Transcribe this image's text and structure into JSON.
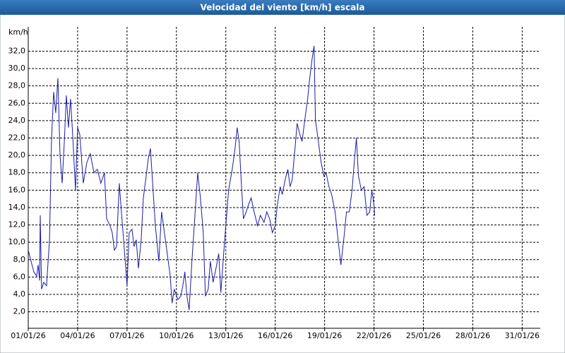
{
  "chart_data": {
    "type": "line",
    "title": "Velocidad del viento [km/h] escala",
    "y_label": "km/h",
    "color": "#1a1aa8",
    "grid": true,
    "x": [
      0.0,
      0.17,
      0.34,
      0.51,
      0.6,
      0.69,
      0.73,
      0.81,
      0.94,
      1.11,
      1.29,
      1.41,
      1.54,
      1.67,
      1.8,
      1.93,
      2.06,
      2.19,
      2.31,
      2.44,
      2.57,
      2.7,
      2.87,
      3.0,
      3.13,
      3.34,
      3.56,
      3.77,
      3.99,
      4.2,
      4.41,
      4.63,
      4.76,
      4.97,
      5.1,
      5.23,
      5.36,
      5.53,
      5.66,
      5.79,
      6.0,
      6.13,
      6.3,
      6.43,
      6.56,
      6.69,
      6.86,
      6.99,
      7.16,
      7.29,
      7.42,
      7.54,
      7.72,
      7.93,
      8.1,
      8.27,
      8.44,
      8.62,
      8.74,
      8.87,
      9.09,
      9.26,
      9.39,
      9.51,
      9.64,
      9.77,
      9.94,
      10.11,
      10.29,
      10.46,
      10.63,
      10.76,
      10.93,
      11.06,
      11.23,
      11.4,
      11.57,
      11.7,
      11.87,
      12.0,
      12.17,
      12.39,
      12.56,
      12.69,
      12.81,
      12.94,
      13.07,
      13.24,
      13.37,
      13.54,
      13.72,
      13.93,
      14.1,
      14.32,
      14.49,
      14.66,
      14.83,
      15.0,
      15.13,
      15.3,
      15.43,
      15.6,
      15.77,
      15.9,
      16.03,
      16.2,
      16.33,
      16.5,
      16.63,
      16.8,
      16.97,
      17.1,
      17.23,
      17.36,
      17.44,
      17.62,
      17.79,
      17.96,
      18.09,
      18.26,
      18.43,
      18.64,
      18.82,
      18.99,
      19.16,
      19.33,
      19.5,
      19.67,
      19.8,
      19.93,
      20.06,
      20.23,
      20.4,
      20.57,
      20.74,
      20.87,
      21.0,
      21.04
    ],
    "values": [
      9.1,
      7.8,
      6.6,
      6.1,
      7.4,
      5.6,
      13.1,
      4.6,
      5.4,
      5.0,
      10.3,
      21.6,
      27.3,
      24.9,
      28.9,
      20.0,
      16.8,
      21.6,
      26.9,
      23.2,
      26.5,
      22.4,
      16.0,
      23.2,
      22.4,
      16.8,
      19.2,
      20.2,
      18.0,
      18.4,
      16.8,
      18.0,
      12.7,
      11.9,
      11.1,
      9.1,
      9.5,
      16.8,
      13.5,
      10.3,
      5.0,
      11.1,
      11.5,
      9.5,
      10.3,
      7.0,
      10.3,
      15.1,
      17.6,
      19.6,
      20.8,
      17.2,
      11.9,
      7.8,
      13.5,
      11.1,
      8.7,
      6.2,
      3.0,
      4.6,
      3.4,
      3.8,
      5.0,
      6.6,
      3.8,
      2.2,
      7.8,
      12.7,
      18.0,
      15.1,
      11.1,
      3.8,
      4.6,
      7.8,
      5.4,
      7.0,
      8.7,
      4.2,
      8.7,
      11.9,
      16.0,
      18.4,
      20.8,
      23.2,
      21.6,
      16.8,
      12.7,
      13.5,
      14.3,
      15.1,
      13.5,
      11.9,
      13.1,
      12.3,
      13.5,
      12.7,
      11.1,
      11.9,
      14.3,
      16.4,
      15.5,
      17.2,
      18.4,
      16.4,
      17.2,
      20.8,
      23.7,
      22.4,
      21.6,
      24.1,
      26.5,
      28.9,
      31.0,
      32.6,
      24.1,
      21.6,
      19.2,
      17.6,
      18.0,
      16.4,
      15.5,
      13.5,
      10.3,
      7.4,
      10.3,
      13.5,
      13.5,
      16.0,
      19.2,
      22.0,
      17.6,
      16.0,
      16.4,
      13.1,
      13.5,
      16.0,
      14.3,
      13.1
    ],
    "xlim": [
      0,
      31.1
    ],
    "xticks": [
      {
        "value": 0,
        "label": "01/01/26"
      },
      {
        "value": 3,
        "label": "04/01/26"
      },
      {
        "value": 6,
        "label": "07/01/26"
      },
      {
        "value": 9,
        "label": "10/01/26"
      },
      {
        "value": 12,
        "label": "13/01/26"
      },
      {
        "value": 15,
        "label": "16/01/26"
      },
      {
        "value": 18,
        "label": "19/01/26"
      },
      {
        "value": 21,
        "label": "22/01/26"
      },
      {
        "value": 24,
        "label": "25/01/26"
      },
      {
        "value": 27,
        "label": "28/01/26"
      },
      {
        "value": 30,
        "label": "31/01/26"
      }
    ],
    "ylim": [
      0.1,
      34.8
    ],
    "yticks": [
      {
        "value": 2,
        "label": "2,0"
      },
      {
        "value": 4,
        "label": "4,0"
      },
      {
        "value": 6,
        "label": "6,0"
      },
      {
        "value": 8,
        "label": "8,0"
      },
      {
        "value": 10,
        "label": "10,0"
      },
      {
        "value": 12,
        "label": "12,0"
      },
      {
        "value": 14,
        "label": "14,0"
      },
      {
        "value": 16,
        "label": "16,0"
      },
      {
        "value": 18,
        "label": "18,0"
      },
      {
        "value": 20,
        "label": "20,0"
      },
      {
        "value": 22,
        "label": "22,0"
      },
      {
        "value": 24,
        "label": "24,0"
      },
      {
        "value": 26,
        "label": "26,0"
      },
      {
        "value": 28,
        "label": "28,0"
      },
      {
        "value": 30,
        "label": "30,0"
      },
      {
        "value": 32,
        "label": "32,0"
      }
    ]
  }
}
